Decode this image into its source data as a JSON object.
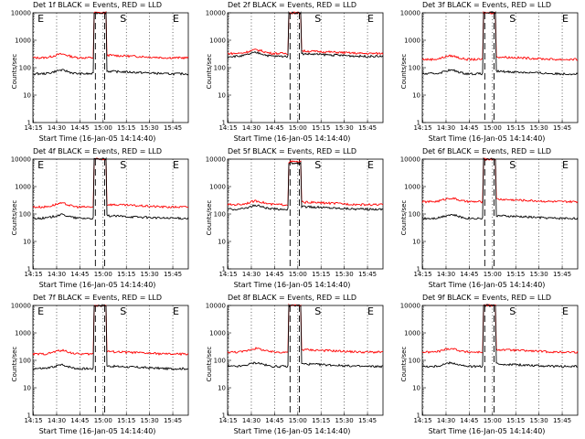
{
  "chart_data": [
    {
      "type": "line",
      "title": "Det 1f BLACK = Events, RED = LLD",
      "xlabel": "Start Time (16-Jan-05 14:14:40)",
      "ylabel": "Counts/sec",
      "xticks": [
        "14:15",
        "14:30",
        "14:45",
        "15:00",
        "15:15",
        "15:30",
        "15:45"
      ],
      "yticks": [
        "1",
        "10",
        "100",
        "1000",
        "10000"
      ],
      "ylim": [
        1,
        10000
      ],
      "yscale": "log",
      "markers": [
        "E",
        "S",
        "E"
      ],
      "series": [
        {
          "color": "#ff0000",
          "level": 230,
          "peak": 10000
        },
        {
          "color": "#000000",
          "level": 60,
          "peak": 10000
        }
      ]
    },
    {
      "type": "line",
      "title": "Det 2f BLACK = Events, RED = LLD",
      "xlabel": "Start Time (16-Jan-05 14:14:40)",
      "ylabel": "Counts/sec",
      "xticks": [
        "14:15",
        "14:30",
        "14:45",
        "15:00",
        "15:15",
        "15:30",
        "15:45"
      ],
      "yticks": [
        "1",
        "10",
        "100",
        "1000",
        "10000"
      ],
      "ylim": [
        1,
        10000
      ],
      "yscale": "log",
      "markers": [
        "S",
        "E"
      ],
      "series": [
        {
          "color": "#ff0000",
          "level": 330,
          "peak": 10000
        },
        {
          "color": "#000000",
          "level": 260,
          "peak": 10000
        }
      ]
    },
    {
      "type": "line",
      "title": "Det 3f BLACK = Events, RED = LLD",
      "xlabel": "Start Time (16-Jan-05 14:14:40)",
      "ylabel": "Counts/sec",
      "xticks": [
        "14:15",
        "14:30",
        "14:45",
        "15:00",
        "15:15",
        "15:30",
        "15:45"
      ],
      "yticks": [
        "1",
        "10",
        "100",
        "1000",
        "10000"
      ],
      "ylim": [
        1,
        10000
      ],
      "yscale": "log",
      "markers": [
        "S",
        "E"
      ],
      "series": [
        {
          "color": "#ff0000",
          "level": 200,
          "peak": 10000
        },
        {
          "color": "#000000",
          "level": 60,
          "peak": 10000
        }
      ]
    },
    {
      "type": "line",
      "title": "Det 4f BLACK = Events, RED = LLD",
      "xlabel": "Start Time (16-Jan-05 14:14:40)",
      "ylabel": "Counts/sec",
      "xticks": [
        "14:15",
        "14:30",
        "14:45",
        "15:00",
        "15:15",
        "15:30",
        "15:45"
      ],
      "yticks": [
        "1",
        "10",
        "100",
        "1000",
        "10000"
      ],
      "ylim": [
        1,
        10000
      ],
      "yscale": "log",
      "markers": [
        "E",
        "S",
        "E"
      ],
      "series": [
        {
          "color": "#ff0000",
          "level": 180,
          "peak": 10000
        },
        {
          "color": "#000000",
          "level": 70,
          "peak": 10000
        }
      ]
    },
    {
      "type": "line",
      "title": "Det 5f BLACK = Events, RED = LLD",
      "xlabel": "Start Time (16-Jan-05 14:14:40)",
      "ylabel": "Counts/sec",
      "xticks": [
        "14:15",
        "14:30",
        "14:45",
        "15:00",
        "15:15",
        "15:30",
        "15:45"
      ],
      "yticks": [
        "1",
        "10",
        "100",
        "1000",
        "10000"
      ],
      "ylim": [
        1,
        10000
      ],
      "yscale": "log",
      "markers": [
        "S",
        "E"
      ],
      "series": [
        {
          "color": "#ff0000",
          "level": 220,
          "peak": 8000
        },
        {
          "color": "#000000",
          "level": 150,
          "peak": 7000
        }
      ]
    },
    {
      "type": "line",
      "title": "Det 6f BLACK = Events, RED = LLD",
      "xlabel": "Start Time (16-Jan-05 14:14:40)",
      "ylabel": "Counts/sec",
      "xticks": [
        "14:15",
        "14:30",
        "14:45",
        "15:00",
        "15:15",
        "15:30",
        "15:45"
      ],
      "yticks": [
        "1",
        "10",
        "100",
        "1000",
        "10000"
      ],
      "ylim": [
        1,
        10000
      ],
      "yscale": "log",
      "markers": [
        "S",
        "E"
      ],
      "series": [
        {
          "color": "#ff0000",
          "level": 280,
          "peak": 10000
        },
        {
          "color": "#000000",
          "level": 70,
          "peak": 10000
        }
      ]
    },
    {
      "type": "line",
      "title": "Det 7f BLACK = Events, RED = LLD",
      "xlabel": "Start Time (16-Jan-05 14:14:40)",
      "ylabel": "Counts/sec",
      "xticks": [
        "14:15",
        "14:30",
        "14:45",
        "15:00",
        "15:15",
        "15:30",
        "15:45"
      ],
      "yticks": [
        "1",
        "10",
        "100",
        "1000",
        "10000"
      ],
      "ylim": [
        1,
        10000
      ],
      "yscale": "log",
      "markers": [
        "E",
        "S",
        "E"
      ],
      "series": [
        {
          "color": "#ff0000",
          "level": 170,
          "peak": 10000
        },
        {
          "color": "#000000",
          "level": 50,
          "peak": 10000
        }
      ]
    },
    {
      "type": "line",
      "title": "Det 8f BLACK = Events, RED = LLD",
      "xlabel": "Start Time (16-Jan-05 14:14:40)",
      "ylabel": "Counts/sec",
      "xticks": [
        "14:15",
        "14:30",
        "14:45",
        "15:00",
        "15:15",
        "15:30",
        "15:45"
      ],
      "yticks": [
        "1",
        "10",
        "100",
        "1000",
        "10000"
      ],
      "ylim": [
        1,
        10000
      ],
      "yscale": "log",
      "markers": [
        "S",
        "E"
      ],
      "series": [
        {
          "color": "#ff0000",
          "level": 200,
          "peak": 10000
        },
        {
          "color": "#000000",
          "level": 60,
          "peak": 10000
        }
      ]
    },
    {
      "type": "line",
      "title": "Det 9f BLACK = Events, RED = LLD",
      "xlabel": "Start Time (16-Jan-05 14:14:40)",
      "ylabel": "Counts/sec",
      "xticks": [
        "14:15",
        "14:30",
        "14:45",
        "15:00",
        "15:15",
        "15:30",
        "15:45"
      ],
      "yticks": [
        "1",
        "10",
        "100",
        "1000",
        "10000"
      ],
      "ylim": [
        1,
        10000
      ],
      "yscale": "log",
      "markers": [
        "S",
        "E"
      ],
      "series": [
        {
          "color": "#ff0000",
          "level": 200,
          "peak": 10000
        },
        {
          "color": "#000000",
          "level": 60,
          "peak": 10000
        }
      ]
    }
  ]
}
